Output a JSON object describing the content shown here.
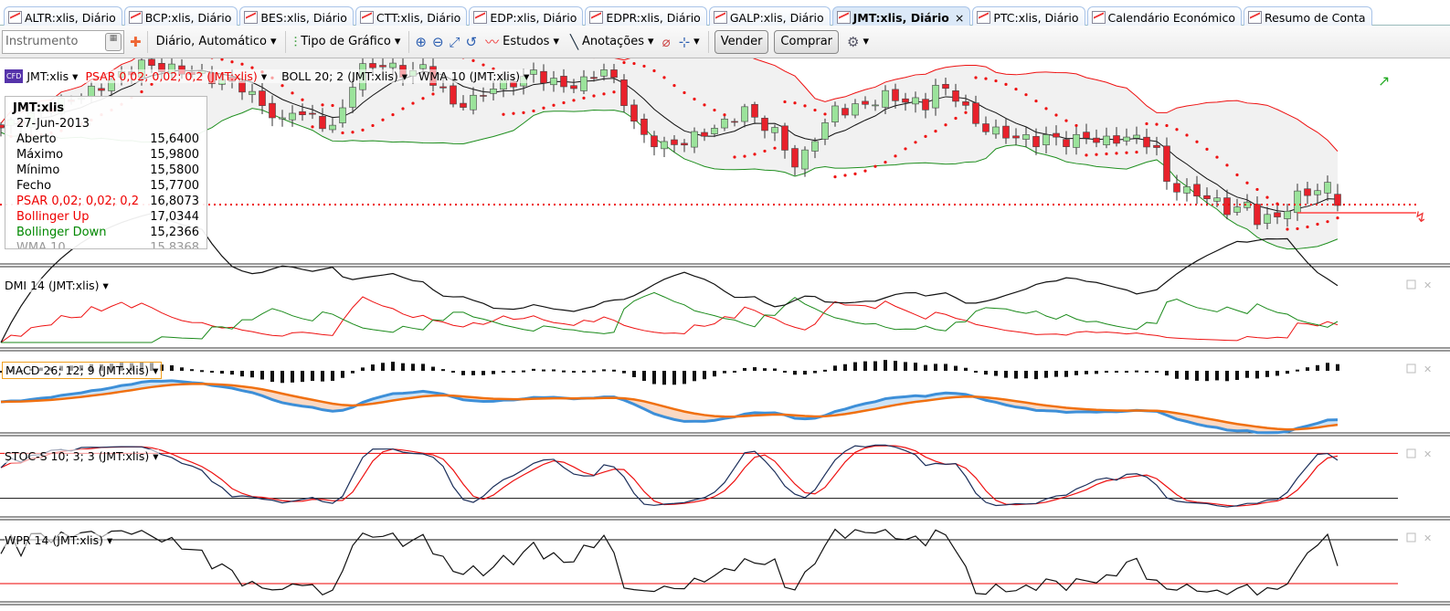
{
  "tabs": [
    {
      "label": "ALTR:xlis, Diário"
    },
    {
      "label": "BCP:xlis, Diário"
    },
    {
      "label": "BES:xlis, Diário"
    },
    {
      "label": "CTT:xlis, Diário"
    },
    {
      "label": "EDP:xlis, Diário"
    },
    {
      "label": "EDPR:xlis, Diário"
    },
    {
      "label": "GALP:xlis, Diário"
    },
    {
      "label": "JMT:xlis, Diário",
      "active": true,
      "close": "×"
    },
    {
      "label": "PTC:xlis, Diário"
    },
    {
      "label": "Calendário Económico"
    },
    {
      "label": "Resumo de Conta"
    }
  ],
  "toolbar": {
    "instrument_placeholder": "Instrumento",
    "period": "Diário, Automático",
    "chart_type": "Tipo de Gráfico",
    "studies": "Estudos",
    "annotations": "Anotações",
    "sell": "Vender",
    "buy": "Comprar"
  },
  "main": {
    "symbol": "JMT:xlis",
    "badge": "CFD",
    "psar_label": "PSAR 0,02; 0,02; 0,2 (JMT:xlis)",
    "boll_label": "BOLL 20; 2 (JMT:xlis)",
    "wma_label": "WMA 10 (JMT:xlis)"
  },
  "info": {
    "title": "JMT:xlis",
    "date": "27-Jun-2013",
    "rows": [
      {
        "k": "Aberto",
        "v": "15,6400",
        "c": "#000"
      },
      {
        "k": "Máximo",
        "v": "15,9800",
        "c": "#000"
      },
      {
        "k": "Mínimo",
        "v": "15,5800",
        "c": "#000"
      },
      {
        "k": "Fecho",
        "v": "15,7700",
        "c": "#000"
      },
      {
        "k": "PSAR 0,02; 0,02; 0,2",
        "v": "16,8073",
        "c": "#e00"
      },
      {
        "k": "Bollinger Up",
        "v": "17,0344",
        "c": "#e00"
      },
      {
        "k": "Bollinger Down",
        "v": "15,2366",
        "c": "#080"
      },
      {
        "k": "WMA 10",
        "v": "15,8368",
        "c": "#999"
      }
    ]
  },
  "panels": {
    "dmi": "DMI 14 (JMT:xlis)",
    "macd": "MACD 26; 12; 9 (JMT:xlis)",
    "stoc": "STOC-S 10; 3; 3 (JMT:xlis)",
    "wpr": "WPR 14 (JMT:xlis)"
  },
  "colors": {
    "up": "#9be39b",
    "down": "#e8212b",
    "boll_up": "#ee1111",
    "boll_down": "#1f8f1f",
    "psar": "#ee1111",
    "macd": "#3d8fd8",
    "signal": "#f07010"
  },
  "chart_data": {
    "type": "candlestick",
    "last": {
      "open": 15.64,
      "high": 15.98,
      "low": 15.58,
      "close": 15.77
    },
    "close_keypoints": [
      [
        -29,
        18.32
      ],
      [
        -20,
        19.52
      ],
      [
        -15,
        20.42
      ],
      [
        -10,
        20.12
      ],
      [
        -5,
        19.67
      ],
      [
        -1,
        18.47
      ],
      [
        0,
        18.92
      ],
      [
        2,
        18.62
      ],
      [
        4,
        18.32
      ],
      [
        5,
        18.92
      ],
      [
        6,
        19.82
      ],
      [
        7,
        20.27
      ],
      [
        9,
        20.42
      ],
      [
        11,
        20.12
      ],
      [
        13,
        20.27
      ],
      [
        15,
        19.52
      ],
      [
        16,
        19.07
      ],
      [
        18,
        19.22
      ],
      [
        20,
        19.67
      ],
      [
        22,
        19.82
      ],
      [
        24,
        20.12
      ],
      [
        25,
        19.97
      ],
      [
        27,
        19.67
      ],
      [
        29,
        19.82
      ],
      [
        31,
        20.27
      ],
      [
        32,
        19.82
      ],
      [
        33,
        19.22
      ],
      [
        34,
        18.47
      ],
      [
        35,
        18.02
      ],
      [
        37,
        17.72
      ],
      [
        39,
        17.87
      ],
      [
        41,
        18.17
      ],
      [
        43,
        18.47
      ],
      [
        45,
        18.92
      ],
      [
        46,
        18.62
      ],
      [
        48,
        18.17
      ],
      [
        50,
        17.12
      ],
      [
        51,
        17.42
      ],
      [
        52,
        18.02
      ],
      [
        54,
        18.92
      ],
      [
        55,
        18.92
      ],
      [
        57,
        19.07
      ],
      [
        59,
        19.37
      ],
      [
        61,
        19.22
      ],
      [
        63,
        19.07
      ],
      [
        64,
        19.67
      ],
      [
        66,
        19.37
      ],
      [
        67,
        18.92
      ],
      [
        68,
        18.47
      ],
      [
        70,
        18.17
      ],
      [
        72,
        18.02
      ],
      [
        74,
        17.87
      ],
      [
        75,
        18.02
      ],
      [
        77,
        17.87
      ],
      [
        79,
        18.02
      ],
      [
        81,
        17.87
      ],
      [
        83,
        18.02
      ],
      [
        85,
        17.87
      ],
      [
        86,
        17.57
      ],
      [
        87,
        16.52
      ],
      [
        89,
        16.22
      ],
      [
        91,
        16.07
      ],
      [
        93,
        15.62
      ],
      [
        95,
        15.77
      ],
      [
        96,
        15.32
      ],
      [
        98,
        15.38
      ],
      [
        100,
        16.07
      ],
      [
        102,
        16.31
      ],
      [
        103,
        16.37
      ],
      [
        104,
        15.77
      ]
    ]
  }
}
